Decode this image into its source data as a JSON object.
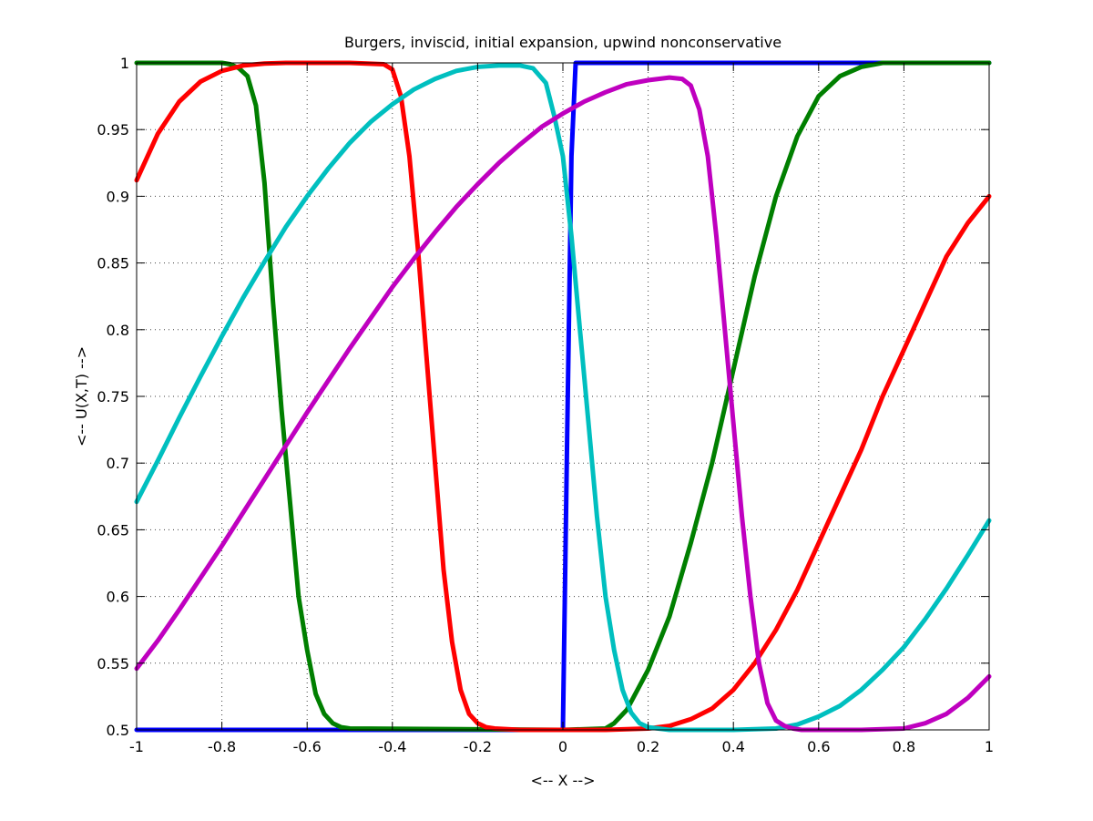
{
  "chart_data": {
    "type": "line",
    "title": "Burgers, inviscid, initial expansion, upwind nonconservative",
    "xlabel": "<-- X -->",
    "ylabel": "<-- U(X,T) -->",
    "xlim": [
      -1,
      1
    ],
    "ylim": [
      0.5,
      1
    ],
    "grid": true,
    "xticks": [
      -1,
      -0.8,
      -0.6,
      -0.4,
      -0.2,
      0,
      0.2,
      0.4,
      0.6,
      0.8,
      1
    ],
    "xtick_labels": [
      "-1",
      "-0.8",
      "-0.6",
      "-0.4",
      "-0.2",
      "0",
      "0.2",
      "0.4",
      "0.6",
      "0.8",
      "1"
    ],
    "yticks": [
      0.5,
      0.55,
      0.6,
      0.65,
      0.7,
      0.75,
      0.8,
      0.85,
      0.9,
      0.95,
      1
    ],
    "ytick_labels": [
      "0.5",
      "0.55",
      "0.6",
      "0.65",
      "0.7",
      "0.75",
      "0.8",
      "0.85",
      "0.9",
      "0.95",
      "1"
    ],
    "series": [
      {
        "color": "#0000ff",
        "x": [
          -1,
          0,
          0.01,
          0.02,
          0.03,
          1
        ],
        "y": [
          0.5,
          0.5,
          0.72,
          0.93,
          1,
          1
        ]
      },
      {
        "color": "#007f00",
        "x": [
          -1,
          -0.8,
          -0.78,
          -0.76,
          -0.74,
          -0.72,
          -0.7,
          -0.68,
          -0.66,
          -0.64,
          -0.62,
          -0.6,
          -0.58,
          -0.56,
          -0.54,
          -0.52,
          -0.5,
          0,
          0.1,
          0.12,
          0.15,
          0.2,
          0.25,
          0.3,
          0.35,
          0.4,
          0.45,
          0.5,
          0.55,
          0.6,
          0.65,
          0.7,
          0.75,
          0.8,
          1
        ],
        "y": [
          1,
          1,
          0.999,
          0.996,
          0.99,
          0.968,
          0.91,
          0.82,
          0.74,
          0.67,
          0.6,
          0.56,
          0.527,
          0.512,
          0.505,
          0.502,
          0.501,
          0.5,
          0.501,
          0.505,
          0.515,
          0.545,
          0.585,
          0.64,
          0.7,
          0.77,
          0.84,
          0.9,
          0.945,
          0.975,
          0.99,
          0.997,
          1,
          1,
          1
        ]
      },
      {
        "color": "#ff0000",
        "x": [
          -1,
          -0.95,
          -0.9,
          -0.85,
          -0.8,
          -0.75,
          -0.7,
          -0.65,
          -0.6,
          -0.5,
          -0.42,
          -0.4,
          -0.38,
          -0.36,
          -0.34,
          -0.32,
          -0.3,
          -0.28,
          -0.26,
          -0.24,
          -0.22,
          -0.2,
          -0.18,
          -0.16,
          -0.1,
          0,
          0.1,
          0.2,
          0.25,
          0.3,
          0.35,
          0.4,
          0.45,
          0.5,
          0.55,
          0.6,
          0.65,
          0.7,
          0.75,
          0.8,
          0.85,
          0.9,
          0.95,
          1
        ],
        "y": [
          0.912,
          0.947,
          0.971,
          0.986,
          0.994,
          0.998,
          0.9995,
          1,
          1,
          1,
          0.999,
          0.995,
          0.975,
          0.93,
          0.86,
          0.78,
          0.7,
          0.62,
          0.566,
          0.53,
          0.512,
          0.505,
          0.502,
          0.501,
          0.5,
          0.5,
          0.5,
          0.501,
          0.503,
          0.508,
          0.516,
          0.53,
          0.55,
          0.575,
          0.605,
          0.64,
          0.675,
          0.71,
          0.75,
          0.785,
          0.82,
          0.855,
          0.88,
          0.9
        ]
      },
      {
        "color": "#00bfbf",
        "x": [
          -1,
          -0.95,
          -0.9,
          -0.85,
          -0.8,
          -0.75,
          -0.7,
          -0.65,
          -0.6,
          -0.55,
          -0.5,
          -0.45,
          -0.4,
          -0.35,
          -0.3,
          -0.25,
          -0.2,
          -0.15,
          -0.1,
          -0.07,
          -0.04,
          -0.02,
          0,
          0.02,
          0.04,
          0.06,
          0.08,
          0.1,
          0.12,
          0.14,
          0.16,
          0.18,
          0.2,
          0.25,
          0.3,
          0.4,
          0.5,
          0.55,
          0.6,
          0.65,
          0.7,
          0.75,
          0.8,
          0.85,
          0.9,
          0.95,
          1
        ],
        "y": [
          0.671,
          0.702,
          0.734,
          0.765,
          0.795,
          0.824,
          0.851,
          0.877,
          0.9,
          0.921,
          0.94,
          0.956,
          0.969,
          0.98,
          0.988,
          0.994,
          0.997,
          0.998,
          0.998,
          0.996,
          0.985,
          0.96,
          0.93,
          0.87,
          0.8,
          0.73,
          0.66,
          0.6,
          0.56,
          0.53,
          0.513,
          0.505,
          0.502,
          0.5,
          0.5,
          0.5,
          0.501,
          0.504,
          0.51,
          0.518,
          0.53,
          0.545,
          0.562,
          0.583,
          0.606,
          0.631,
          0.657
        ]
      },
      {
        "color": "#bf00bf",
        "x": [
          -1,
          -0.95,
          -0.9,
          -0.85,
          -0.8,
          -0.75,
          -0.7,
          -0.65,
          -0.6,
          -0.55,
          -0.5,
          -0.45,
          -0.4,
          -0.35,
          -0.3,
          -0.25,
          -0.2,
          -0.15,
          -0.1,
          -0.05,
          0,
          0.05,
          0.1,
          0.15,
          0.2,
          0.25,
          0.28,
          0.3,
          0.32,
          0.34,
          0.36,
          0.38,
          0.4,
          0.42,
          0.44,
          0.46,
          0.48,
          0.5,
          0.52,
          0.54,
          0.56,
          0.6,
          0.7,
          0.8,
          0.85,
          0.9,
          0.95,
          1
        ],
        "y": [
          0.546,
          0.567,
          0.59,
          0.614,
          0.638,
          0.663,
          0.688,
          0.713,
          0.738,
          0.762,
          0.786,
          0.809,
          0.832,
          0.853,
          0.873,
          0.892,
          0.909,
          0.925,
          0.939,
          0.952,
          0.962,
          0.971,
          0.978,
          0.984,
          0.987,
          0.989,
          0.988,
          0.983,
          0.965,
          0.93,
          0.87,
          0.8,
          0.73,
          0.66,
          0.6,
          0.55,
          0.52,
          0.507,
          0.503,
          0.501,
          0.5,
          0.5,
          0.5,
          0.501,
          0.505,
          0.512,
          0.524,
          0.54
        ]
      }
    ]
  }
}
